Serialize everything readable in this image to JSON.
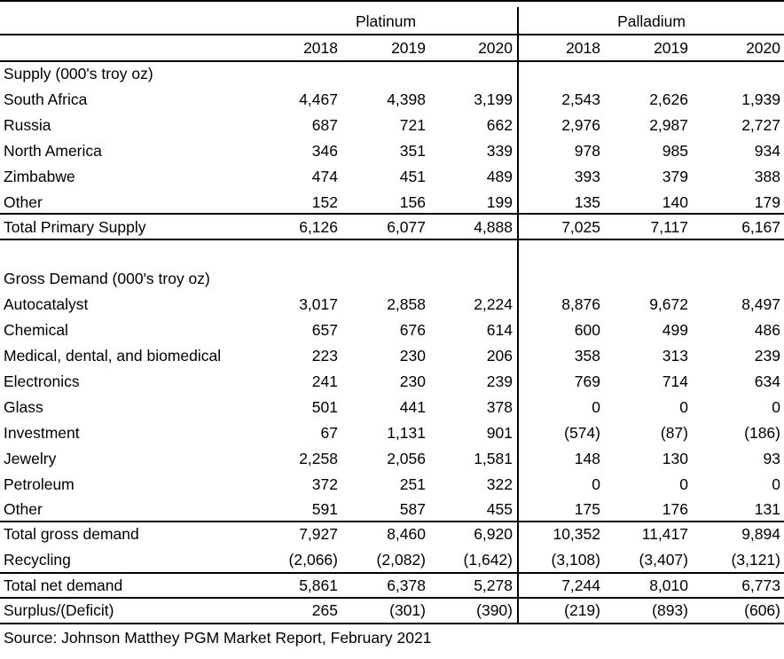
{
  "group_headers": {
    "platinum": "Platinum",
    "palladium": "Palladium"
  },
  "years": [
    "2018",
    "2019",
    "2020",
    "2018",
    "2019",
    "2020"
  ],
  "rows": [
    {
      "label": "Supply (000's troy oz)",
      "values": [
        "",
        "",
        "",
        "",
        "",
        ""
      ]
    },
    {
      "label": "South Africa",
      "values": [
        "4,467",
        "4,398",
        "3,199",
        "2,543",
        "2,626",
        "1,939"
      ]
    },
    {
      "label": "Russia",
      "values": [
        "687",
        "721",
        "662",
        "2,976",
        "2,987",
        "2,727"
      ]
    },
    {
      "label": "North America",
      "values": [
        "346",
        "351",
        "339",
        "978",
        "985",
        "934"
      ]
    },
    {
      "label": "Zimbabwe",
      "values": [
        "474",
        "451",
        "489",
        "393",
        "379",
        "388"
      ]
    },
    {
      "label": "Other",
      "values": [
        "152",
        "156",
        "199",
        "135",
        "140",
        "179"
      ]
    },
    {
      "label": "Total Primary Supply",
      "values": [
        "6,126",
        "6,077",
        "4,888",
        "7,025",
        "7,117",
        "6,167"
      ]
    },
    {
      "label": "",
      "values": [
        "",
        "",
        "",
        "",
        "",
        ""
      ]
    },
    {
      "label": "Gross Demand (000's troy oz)",
      "values": [
        "",
        "",
        "",
        "",
        "",
        ""
      ]
    },
    {
      "label": "Autocatalyst",
      "values": [
        "3,017",
        "2,858",
        "2,224",
        "8,876",
        "9,672",
        "8,497"
      ]
    },
    {
      "label": "Chemical",
      "values": [
        "657",
        "676",
        "614",
        "600",
        "499",
        "486"
      ]
    },
    {
      "label": "Medical, dental, and biomedical",
      "values": [
        "223",
        "230",
        "206",
        "358",
        "313",
        "239"
      ]
    },
    {
      "label": "Electronics",
      "values": [
        "241",
        "230",
        "239",
        "769",
        "714",
        "634"
      ]
    },
    {
      "label": "Glass",
      "values": [
        "501",
        "441",
        "378",
        "0",
        "0",
        "0"
      ]
    },
    {
      "label": "Investment",
      "values": [
        "67",
        "1,131",
        "901",
        "(574)",
        "(87)",
        "(186)"
      ]
    },
    {
      "label": "Jewelry",
      "values": [
        "2,258",
        "2,056",
        "1,581",
        "148",
        "130",
        "93"
      ]
    },
    {
      "label": "Petroleum",
      "values": [
        "372",
        "251",
        "322",
        "0",
        "0",
        "0"
      ]
    },
    {
      "label": "Other",
      "values": [
        "591",
        "587",
        "455",
        "175",
        "176",
        "131"
      ]
    },
    {
      "label": "Total gross demand",
      "values": [
        "7,927",
        "8,460",
        "6,920",
        "10,352",
        "11,417",
        "9,894"
      ]
    },
    {
      "label": "Recycling",
      "values": [
        "(2,066)",
        "(2,082)",
        "(1,642)",
        "(3,108)",
        "(3,407)",
        "(3,121)"
      ]
    },
    {
      "label": "Total net demand",
      "values": [
        "5,861",
        "6,378",
        "5,278",
        "7,244",
        "8,010",
        "6,773"
      ]
    },
    {
      "label": "Surplus/(Deficit)",
      "values": [
        "265",
        "(301)",
        "(390)",
        "(219)",
        "(893)",
        "(606)"
      ]
    }
  ],
  "source": "Source: Johnson Matthey PGM Market Report, February 2021"
}
